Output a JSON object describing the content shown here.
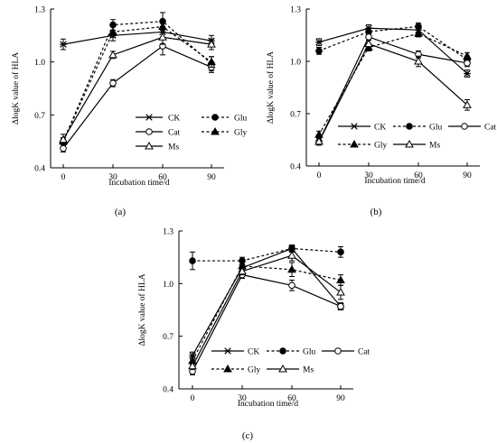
{
  "figure": {
    "colors": {
      "ink": "#000000",
      "background": "#ffffff"
    },
    "panels": [
      {
        "label": "(a)"
      },
      {
        "label": "(b)"
      },
      {
        "label": "(c)"
      }
    ]
  },
  "chart_data": [
    {
      "type": "line",
      "panel_label": "(a)",
      "xlabel": "Incubation time/d",
      "ylabel": "ΔlogK value of HLA",
      "x": [
        0,
        30,
        60,
        90
      ],
      "ylim": [
        0.4,
        1.3
      ],
      "yticks": [
        "0.4",
        "0.7",
        "1.0",
        "1.3"
      ],
      "grid": false,
      "legend_position": "right",
      "series": [
        {
          "name": "CK",
          "marker": "asterisk",
          "dash": "solid",
          "values": [
            1.1,
            1.15,
            1.17,
            1.12
          ],
          "err": [
            0.03,
            0.03,
            0.03,
            0.03
          ]
        },
        {
          "name": "Glu",
          "marker": "filled-circle",
          "dash": "dashed",
          "values": [
            0.55,
            1.21,
            1.23,
            0.99
          ],
          "err": [
            0.02,
            0.03,
            0.05,
            0.04
          ]
        },
        {
          "name": "Cat",
          "marker": "open-circle",
          "dash": "solid",
          "values": [
            0.51,
            0.88,
            1.09,
            0.97
          ],
          "err": [
            0.02,
            0.02,
            0.05,
            0.03
          ]
        },
        {
          "name": "Gly",
          "marker": "filled-triangle",
          "dash": "dashed",
          "values": [
            0.55,
            1.17,
            1.2,
            1.0
          ],
          "err": [
            0.02,
            0.03,
            0.03,
            0.03
          ]
        },
        {
          "name": "Ms",
          "marker": "open-triangle",
          "dash": "solid",
          "values": [
            0.56,
            1.04,
            1.14,
            1.1
          ],
          "err": [
            0.03,
            0.02,
            0.04,
            0.03
          ]
        }
      ]
    },
    {
      "type": "line",
      "panel_label": "(b)",
      "xlabel": "Incubation time/d",
      "ylabel": "ΔlogK value of HLA",
      "x": [
        0,
        30,
        60,
        90
      ],
      "ylim": [
        0.4,
        1.3
      ],
      "yticks": [
        "0.4",
        "0.7",
        "1.0",
        "1.3"
      ],
      "grid": false,
      "legend_position": "bottom-right",
      "series": [
        {
          "name": "CK",
          "marker": "asterisk",
          "dash": "solid",
          "values": [
            1.11,
            1.19,
            1.18,
            0.93
          ],
          "err": [
            0.02,
            0.02,
            0.02,
            0.02
          ]
        },
        {
          "name": "Glu",
          "marker": "filled-circle",
          "dash": "dashed",
          "values": [
            1.06,
            1.17,
            1.2,
            1.01
          ],
          "err": [
            0.02,
            0.02,
            0.02,
            0.02
          ]
        },
        {
          "name": "Cat",
          "marker": "open-circle",
          "dash": "solid",
          "values": [
            0.54,
            1.14,
            1.04,
            0.99
          ],
          "err": [
            0.02,
            0.02,
            0.02,
            0.02
          ]
        },
        {
          "name": "Gly",
          "marker": "filled-triangle",
          "dash": "dashed",
          "values": [
            0.58,
            1.08,
            1.16,
            1.03
          ],
          "err": [
            0.02,
            0.02,
            0.02,
            0.02
          ]
        },
        {
          "name": "Ms",
          "marker": "open-triangle",
          "dash": "solid",
          "values": [
            0.54,
            1.1,
            1.0,
            0.75
          ],
          "err": [
            0.02,
            0.02,
            0.03,
            0.03
          ]
        }
      ]
    },
    {
      "type": "line",
      "panel_label": "(c)",
      "xlabel": "Incubation time/d",
      "ylabel": "ΔlogK value of HLA",
      "x": [
        0,
        30,
        60,
        90
      ],
      "ylim": [
        0.4,
        1.3
      ],
      "yticks": [
        "0.4",
        "0.7",
        "1.0",
        "1.3"
      ],
      "grid": false,
      "legend_position": "bottom-right",
      "series": [
        {
          "name": "CK",
          "marker": "asterisk",
          "dash": "solid",
          "values": [
            0.59,
            1.09,
            1.2,
            0.87
          ],
          "err": [
            0.02,
            0.02,
            0.02,
            0.02
          ]
        },
        {
          "name": "Glu",
          "marker": "filled-circle",
          "dash": "dashed",
          "values": [
            1.13,
            1.13,
            1.2,
            1.18
          ],
          "err": [
            0.05,
            0.02,
            0.02,
            0.03
          ]
        },
        {
          "name": "Cat",
          "marker": "open-circle",
          "dash": "solid",
          "values": [
            0.5,
            1.05,
            0.99,
            0.87
          ],
          "err": [
            0.02,
            0.02,
            0.03,
            0.02
          ]
        },
        {
          "name": "Gly",
          "marker": "filled-triangle",
          "dash": "dashed",
          "values": [
            0.56,
            1.1,
            1.08,
            1.02
          ],
          "err": [
            0.02,
            0.02,
            0.04,
            0.03
          ]
        },
        {
          "name": "Ms",
          "marker": "open-triangle",
          "dash": "solid",
          "values": [
            0.53,
            1.07,
            1.16,
            0.95
          ],
          "err": [
            0.02,
            0.02,
            0.03,
            0.04
          ]
        }
      ]
    }
  ]
}
